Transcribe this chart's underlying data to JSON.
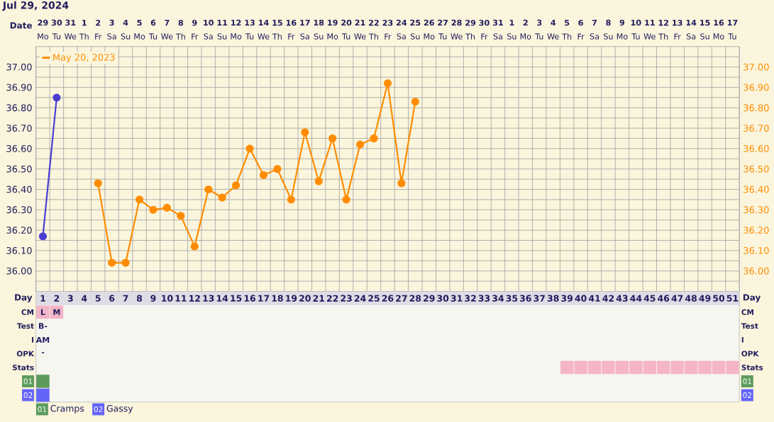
{
  "chart_data": [
    {
      "type": "line",
      "title": "Jul 29, 2024",
      "xlabel": "Date",
      "categories": [
        "**29** Mo",
        "**30** Tu",
        "**31** We",
        "**1** Th",
        "**2** Fr",
        "**3** Sa",
        "**4** Su",
        "**5** Mo",
        "**6** Tu",
        "**7** We",
        "**8** Th",
        "**9** Fr",
        "**10** Sa",
        "**11** Su",
        "**12** Mo",
        "**13** Tu",
        "**14** We",
        "**15** Th",
        "**16** Fr",
        "**17** Sa",
        "**18** Su",
        "**19** Mo",
        "**20** Tu",
        "**21** We",
        "**22** Th",
        "**23** Fr",
        "**24** Sa",
        "**25** Su",
        "**26** Mo",
        "**27** Tu",
        "**28** We",
        "**29** Th",
        "**30** Fr",
        "**31** Sa",
        "**1** Su",
        "**2** Mo",
        "**3** Tu",
        "**4** We",
        "**5** Th",
        "**6** Fr",
        "**7** Sa",
        "**8** Su",
        "**9** Mo",
        "**10** Tu",
        "**11** We",
        "**12** Th",
        "**13** Fr",
        "**14** Sa",
        "**15** Su",
        "**16** Mo",
        "**17** Tu"
      ],
      "series": [
        {
          "color": "#4a3ed2",
          "values": [
            36.17,
            36.85,
            null,
            null,
            null,
            null,
            null,
            null,
            null,
            null,
            null,
            null,
            null,
            null,
            null,
            null,
            null,
            null,
            null,
            null,
            null,
            null,
            null,
            null,
            null,
            null,
            null,
            null,
            null,
            null,
            null,
            null,
            null,
            null,
            null,
            null,
            null,
            null,
            null,
            null,
            null,
            null,
            null,
            null,
            null,
            null,
            null,
            null,
            null,
            null,
            null
          ]
        },
        {
          "name": "May 20, 2023",
          "color": "#ff8c00",
          "axis": "y2",
          "values": [
            null,
            null,
            null,
            null,
            36.43,
            36.04,
            36.04,
            36.35,
            36.3,
            36.31,
            36.27,
            36.12,
            36.4,
            36.36,
            36.42,
            36.6,
            36.47,
            36.5,
            36.35,
            36.68,
            36.44,
            36.65,
            36.35,
            36.62,
            36.65,
            36.92,
            36.43,
            36.83,
            null,
            null,
            null,
            null,
            null,
            null,
            null,
            null,
            null,
            null,
            null,
            null,
            null,
            null,
            null,
            null,
            null,
            null,
            null,
            null,
            null,
            null,
            null
          ]
        }
      ],
      "ylim": [
        35.9,
        37.1
      ],
      "yticks": [
        {
          "value": 35.95,
          "label": null
        },
        {
          "value": 36.0,
          "label": "36.00"
        },
        {
          "value": 36.05,
          "label": null
        },
        {
          "value": 36.1,
          "label": "36.10"
        },
        {
          "value": 36.15,
          "label": null
        },
        {
          "value": 36.2,
          "label": "36.20"
        },
        {
          "value": 36.25,
          "label": null
        },
        {
          "value": 36.3,
          "label": "36.30"
        },
        {
          "value": 36.35,
          "label": null
        },
        {
          "value": 36.4,
          "label": "36.40"
        },
        {
          "value": 36.45,
          "label": null
        },
        {
          "value": 36.5,
          "label": "36.50"
        },
        {
          "value": 36.55,
          "label": null
        },
        {
          "value": 36.6,
          "label": "36.60"
        },
        {
          "value": 36.65,
          "label": null
        },
        {
          "value": 36.7,
          "label": "36.70"
        },
        {
          "value": 36.75,
          "label": null
        },
        {
          "value": 36.8,
          "label": "36.80"
        },
        {
          "value": 36.85,
          "label": null
        },
        {
          "value": 36.9,
          "label": "36.90"
        },
        {
          "value": 36.95,
          "label": null
        },
        {
          "value": 37.0,
          "label": "37.00"
        },
        {
          "value": 37.05,
          "label": null
        }
      ],
      "y2lim": [
        35.9,
        37.1
      ],
      "y2ticks": [
        {
          "value": 36.0,
          "label": "36.00"
        },
        {
          "value": 36.1,
          "label": "36.10"
        },
        {
          "value": 36.2,
          "label": "36.20"
        },
        {
          "value": 36.3,
          "label": "36.30"
        },
        {
          "value": 36.4,
          "label": "36.40"
        },
        {
          "value": 36.5,
          "label": "36.50"
        },
        {
          "value": 36.6,
          "label": "36.60"
        },
        {
          "value": 36.7,
          "label": "36.70"
        },
        {
          "value": 36.8,
          "label": "36.80"
        },
        {
          "value": 36.9,
          "label": "36.90"
        },
        {
          "value": 37.0,
          "label": "37.00"
        }
      ],
      "grid": true,
      "legend": "top left",
      "marker": "circle"
    },
    {
      "type": "heatmap",
      "xlabel": "Day",
      "categories": [
        "1",
        "2",
        "3",
        "4",
        "5",
        "6",
        "7",
        "8",
        "9",
        "10",
        "11",
        "12",
        "13",
        "14",
        "15",
        "16",
        "17",
        "18",
        "19",
        "20",
        "21",
        "22",
        "23",
        "24",
        "25",
        "26",
        "27",
        "28",
        "29",
        "30",
        "31",
        "32",
        "33",
        "34",
        "35",
        "36",
        "37",
        "38",
        "39",
        "40",
        "41",
        "42",
        "43",
        "44",
        "45",
        "46",
        "47",
        "48",
        "49",
        "50",
        "51"
      ],
      "y_categories": [
        "CM",
        "Test",
        "I",
        "OPK",
        "Stats",
        "01",
        "02"
      ],
      "y2_categories": [
        "CM",
        "Test",
        "I",
        "OPK",
        "Stats",
        "01",
        "02"
      ],
      "cells": [
        [
          null,
          null,
          null,
          null,
          null,
          null,
          null,
          null,
          null,
          null,
          null,
          null,
          null,
          null,
          null,
          null,
          null,
          null,
          null,
          null,
          null,
          null,
          null,
          null,
          null,
          null,
          null,
          null,
          null,
          null,
          null,
          null,
          null,
          null,
          null,
          null,
          null,
          null,
          null,
          null,
          null,
          null,
          null,
          null,
          null,
          null,
          null,
          null,
          null,
          null,
          null
        ],
        [
          null,
          null,
          null,
          null,
          null,
          null,
          null,
          null,
          null,
          null,
          null,
          null,
          null,
          null,
          null,
          null,
          null,
          null,
          null,
          null,
          null,
          null,
          null,
          null,
          null,
          null,
          null,
          null,
          null,
          null,
          null,
          null,
          null,
          null,
          null,
          null,
          null,
          null,
          null,
          null,
          null,
          null,
          null,
          null,
          null,
          null,
          null,
          null,
          null,
          null,
          null
        ],
        [
          null,
          null,
          null,
          null,
          null,
          null,
          null,
          null,
          null,
          null,
          null,
          null,
          null,
          null,
          null,
          null,
          null,
          null,
          null,
          null,
          null,
          null,
          null,
          null,
          null,
          null,
          null,
          null,
          null,
          null,
          null,
          null,
          null,
          null,
          null,
          null,
          null,
          null,
          null,
          null,
          null,
          null,
          null,
          null,
          null,
          null,
          null,
          null,
          null,
          null,
          null
        ],
        [
          null,
          null,
          null,
          null,
          null,
          null,
          null,
          null,
          null,
          null,
          null,
          null,
          null,
          null,
          null,
          null,
          null,
          null,
          null,
          null,
          null,
          null,
          null,
          null,
          null,
          null,
          null,
          null,
          null,
          null,
          null,
          null,
          null,
          null,
          null,
          null,
          null,
          null,
          null,
          null,
          null,
          null,
          null,
          null,
          null,
          null,
          null,
          null,
          null,
          null,
          null
        ],
        [
          null,
          null,
          null,
          null,
          null,
          null,
          null,
          null,
          null,
          null,
          null,
          null,
          null,
          null,
          null,
          null,
          null,
          null,
          null,
          null,
          null,
          null,
          null,
          null,
          null,
          null,
          null,
          null,
          null,
          null,
          null,
          null,
          null,
          null,
          null,
          null,
          null,
          null,
          null,
          null,
          null,
          null,
          null,
          null,
          null,
          null,
          null,
          null,
          null,
          null,
          null
        ],
        [
          null,
          null,
          null,
          null,
          null,
          null,
          null,
          null,
          null,
          null,
          null,
          null,
          null,
          null,
          null,
          null,
          null,
          null,
          null,
          null,
          null,
          null,
          null,
          null,
          null,
          null,
          null,
          null,
          null,
          null,
          null,
          null,
          null,
          null,
          null,
          null,
          null,
          null,
          null,
          null,
          null,
          null,
          null,
          null,
          null,
          null,
          null,
          null,
          null,
          null,
          null
        ],
        [
          null,
          null,
          null,
          null,
          null,
          null,
          null,
          null,
          null,
          null,
          null,
          null,
          null,
          null,
          null,
          null,
          null,
          null,
          null,
          null,
          null,
          null,
          null,
          null,
          null,
          null,
          null,
          null,
          null,
          null,
          null,
          null,
          null,
          null,
          null,
          null,
          null,
          null,
          null,
          null,
          null,
          null,
          null,
          null,
          null,
          null,
          null,
          null,
          null,
          null,
          null
        ]
      ],
      "cell_labels": [
        [
          "L",
          "M",
          null,
          null,
          null,
          null,
          null,
          null,
          null,
          null,
          null,
          null,
          null,
          null,
          null,
          null,
          null,
          null,
          null,
          null,
          null,
          null,
          null,
          null,
          null,
          null,
          null,
          null,
          null,
          null,
          null,
          null,
          null,
          null,
          null,
          null,
          null,
          null,
          null,
          null,
          null,
          null,
          null,
          null,
          null,
          null,
          null,
          null,
          null,
          null,
          null
        ],
        [
          "B-",
          null,
          null,
          null,
          null,
          null,
          null,
          null,
          null,
          null,
          null,
          null,
          null,
          null,
          null,
          null,
          null,
          null,
          null,
          null,
          null,
          null,
          null,
          null,
          null,
          null,
          null,
          null,
          null,
          null,
          null,
          null,
          null,
          null,
          null,
          null,
          null,
          null,
          null,
          null,
          null,
          null,
          null,
          null,
          null,
          null,
          null,
          null,
          null,
          null,
          null
        ],
        [
          "AM",
          null,
          null,
          null,
          null,
          null,
          null,
          null,
          null,
          null,
          null,
          null,
          null,
          null,
          null,
          null,
          null,
          null,
          null,
          null,
          null,
          null,
          null,
          null,
          null,
          null,
          null,
          null,
          null,
          null,
          null,
          null,
          null,
          null,
          null,
          null,
          null,
          null,
          null,
          null,
          null,
          null,
          null,
          null,
          null,
          null,
          null,
          null,
          null,
          null,
          null
        ],
        [
          "-",
          null,
          null,
          null,
          null,
          null,
          null,
          null,
          null,
          null,
          null,
          null,
          null,
          null,
          null,
          null,
          null,
          null,
          null,
          null,
          null,
          null,
          null,
          null,
          null,
          null,
          null,
          null,
          null,
          null,
          null,
          null,
          null,
          null,
          null,
          null,
          null,
          null,
          null,
          null,
          null,
          null,
          null,
          null,
          null,
          null,
          null,
          null,
          null,
          null,
          null
        ],
        [
          null,
          null,
          null,
          null,
          null,
          null,
          null,
          null,
          null,
          null,
          null,
          null,
          null,
          null,
          null,
          null,
          null,
          null,
          null,
          null,
          null,
          null,
          null,
          null,
          null,
          null,
          null,
          null,
          null,
          null,
          null,
          null,
          null,
          null,
          null,
          null,
          null,
          null,
          null,
          null,
          null,
          null,
          null,
          null,
          null,
          null,
          null,
          null,
          null,
          null,
          null
        ],
        [
          null,
          null,
          null,
          null,
          null,
          null,
          null,
          null,
          null,
          null,
          null,
          null,
          null,
          null,
          null,
          null,
          null,
          null,
          null,
          null,
          null,
          null,
          null,
          null,
          null,
          null,
          null,
          null,
          null,
          null,
          null,
          null,
          null,
          null,
          null,
          null,
          null,
          null,
          null,
          null,
          null,
          null,
          null,
          null,
          null,
          null,
          null,
          null,
          null,
          null,
          null
        ],
        [
          null,
          null,
          null,
          null,
          null,
          null,
          null,
          null,
          null,
          null,
          null,
          null,
          null,
          null,
          null,
          null,
          null,
          null,
          null,
          null,
          null,
          null,
          null,
          null,
          null,
          null,
          null,
          null,
          null,
          null,
          null,
          null,
          null,
          null,
          null,
          null,
          null,
          null,
          null,
          null,
          null,
          null,
          null,
          null,
          null,
          null,
          null,
          null,
          null,
          null,
          null
        ]
      ],
      "colors": [
        [
          "#f2b5c6",
          "#f2b5c6",
          null,
          null,
          null,
          null,
          null,
          null,
          null,
          null,
          null,
          null,
          null,
          null,
          null,
          null,
          null,
          null,
          null,
          null,
          null,
          null,
          null,
          null,
          null,
          null,
          null,
          null,
          null,
          null,
          null,
          null,
          null,
          null,
          null,
          null,
          null,
          null,
          null,
          null,
          null,
          null,
          null,
          null,
          null,
          null,
          null,
          null,
          null,
          null,
          null
        ],
        [
          null,
          null,
          null,
          null,
          null,
          null,
          null,
          null,
          null,
          null,
          null,
          null,
          null,
          null,
          null,
          null,
          null,
          null,
          null,
          null,
          null,
          null,
          null,
          null,
          null,
          null,
          null,
          null,
          null,
          null,
          null,
          null,
          null,
          null,
          null,
          null,
          null,
          null,
          null,
          null,
          null,
          null,
          null,
          null,
          null,
          null,
          null,
          null,
          null,
          null,
          null
        ],
        [
          null,
          null,
          null,
          null,
          null,
          null,
          null,
          null,
          null,
          null,
          null,
          null,
          null,
          null,
          null,
          null,
          null,
          null,
          null,
          null,
          null,
          null,
          null,
          null,
          null,
          null,
          null,
          null,
          null,
          null,
          null,
          null,
          null,
          null,
          null,
          null,
          null,
          null,
          null,
          null,
          null,
          null,
          null,
          null,
          null,
          null,
          null,
          null,
          null,
          null,
          null
        ],
        [
          null,
          null,
          null,
          null,
          null,
          null,
          null,
          null,
          null,
          null,
          null,
          null,
          null,
          null,
          null,
          null,
          null,
          null,
          null,
          null,
          null,
          null,
          null,
          null,
          null,
          null,
          null,
          null,
          null,
          null,
          null,
          null,
          null,
          null,
          null,
          null,
          null,
          null,
          null,
          null,
          null,
          null,
          null,
          null,
          null,
          null,
          null,
          null,
          null,
          null,
          null
        ],
        [
          null,
          null,
          null,
          null,
          null,
          null,
          null,
          null,
          null,
          null,
          null,
          null,
          null,
          null,
          null,
          null,
          null,
          null,
          null,
          null,
          null,
          null,
          null,
          null,
          null,
          null,
          null,
          null,
          null,
          null,
          null,
          null,
          null,
          null,
          null,
          null,
          null,
          null,
          "#f4b6c7",
          "#f4b6c7",
          "#f4b6c7",
          "#f4b6c7",
          "#f4b6c7",
          "#f4b6c7",
          "#f4b6c7",
          "#f4b6c7",
          "#f4b6c7",
          "#f4b6c7",
          "#f4b6c7",
          "#f4b6c7",
          "#f4b6c7"
        ],
        [
          "#5d9b5d",
          null,
          null,
          null,
          null,
          null,
          null,
          null,
          null,
          null,
          null,
          null,
          null,
          null,
          null,
          null,
          null,
          null,
          null,
          null,
          null,
          null,
          null,
          null,
          null,
          null,
          null,
          null,
          null,
          null,
          null,
          null,
          null,
          null,
          null,
          null,
          null,
          null,
          null,
          null,
          null,
          null,
          null,
          null,
          null,
          null,
          null,
          null,
          null,
          null,
          null
        ],
        [
          "#6464fa",
          null,
          null,
          null,
          null,
          null,
          null,
          null,
          null,
          null,
          null,
          null,
          null,
          null,
          null,
          null,
          null,
          null,
          null,
          null,
          null,
          null,
          null,
          null,
          null,
          null,
          null,
          null,
          null,
          null,
          null,
          null,
          null,
          null,
          null,
          null,
          null,
          null,
          null,
          null,
          null,
          null,
          null,
          null,
          null,
          null,
          null,
          null,
          null,
          null,
          null
        ]
      ],
      "grid": true,
      "annotations": [
        "Cramps",
        "Gassy"
      ]
    }
  ]
}
